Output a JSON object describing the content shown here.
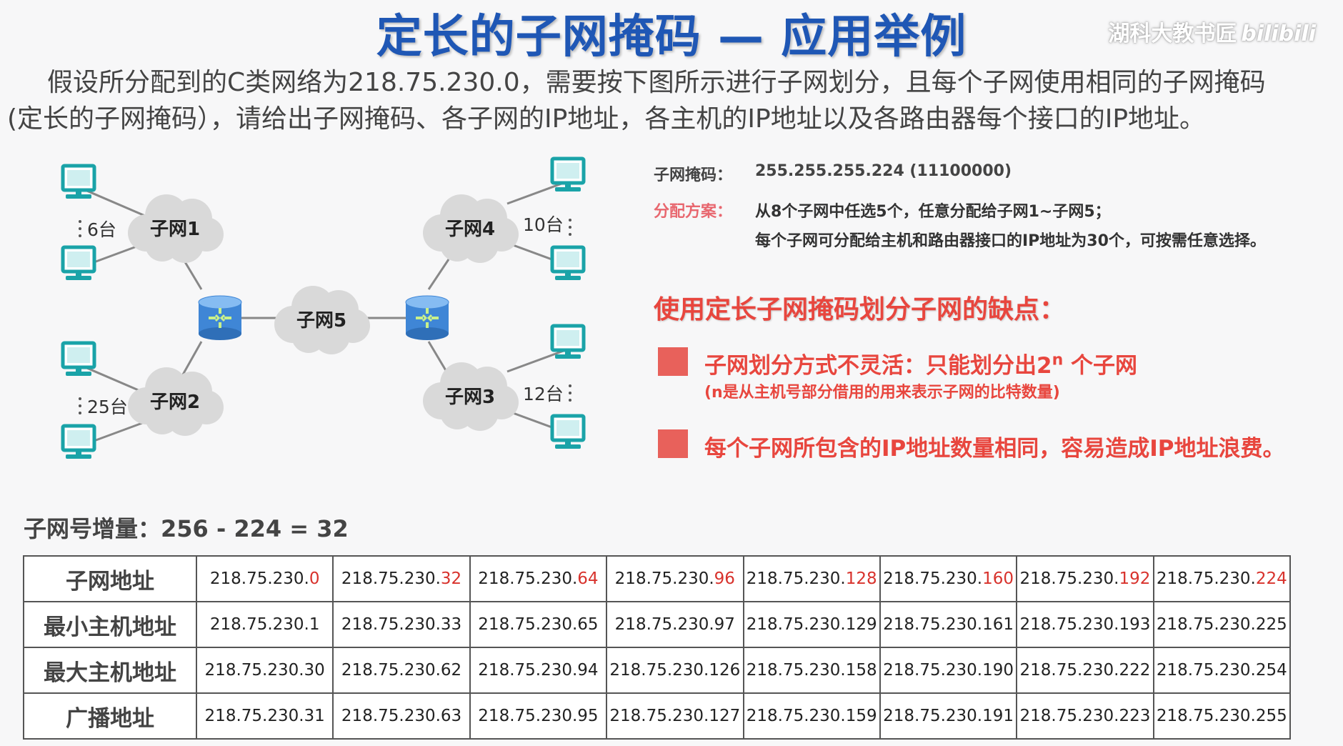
{
  "title": "定长的子网掩码 — 应用举例",
  "watermark": {
    "text": "湖科大教书匠",
    "logo": "bilibili"
  },
  "intro": {
    "line1": "假设所分配到的C类网络为218.75.230.0，需要按下图所示进行子网划分，且每个子网使用相同的子网掩码",
    "line2": "(定长的子网掩码），请给出子网掩码、各子网的IP地址，各主机的IP地址以及各路由器每个接口的IP地址。"
  },
  "diagram": {
    "subnets": [
      "子网1",
      "子网2",
      "子网3",
      "子网4",
      "子网5"
    ],
    "host_counts": {
      "subnet1": "6台",
      "subnet2": "25台",
      "subnet3": "12台",
      "subnet4": "10台"
    },
    "colors": {
      "cloud": "#d9d9d9",
      "router": "#3f86d6",
      "host": "#1aa3a8",
      "link": "#888888"
    }
  },
  "info": {
    "mask_label": "子网掩码：",
    "mask_value": "255.255.255.224 (11100000)",
    "plan_label": "分配方案：",
    "plan_line1": "从8个子网中任选5个，任意分配给子网1~子网5；",
    "plan_line2": "每个子网可分配给主机和路由器接口的IP地址为30个，可按需任意选择。"
  },
  "drawbacks": {
    "title": "使用定长子网掩码划分子网的缺点：",
    "item1_text": "子网划分方式不灵活：只能划分出2",
    "item1_sup": "n",
    "item1_tail": " 个子网",
    "item1_sub": "(n是从主机号部分借用的用来表示子网的比特数量)",
    "item2": "每个子网所包含的IP地址数量相同，容易造成IP地址浪费。",
    "accent": "#e8463e"
  },
  "increment": "子网号增量：256 - 224 = 32",
  "table": {
    "row_headers": [
      "子网地址",
      "最小主机地址",
      "最大主机地址",
      "广播地址"
    ],
    "subnet_prefix": "218.75.230.",
    "subnet_suffix": [
      "0",
      "32",
      "64",
      "96",
      "128",
      "160",
      "192",
      "224"
    ],
    "min_host": [
      "218.75.230.1",
      "218.75.230.33",
      "218.75.230.65",
      "218.75.230.97",
      "218.75.230.129",
      "218.75.230.161",
      "218.75.230.193",
      "218.75.230.225"
    ],
    "max_host": [
      "218.75.230.30",
      "218.75.230.62",
      "218.75.230.94",
      "218.75.230.126",
      "218.75.230.158",
      "218.75.230.190",
      "218.75.230.222",
      "218.75.230.254"
    ],
    "broadcast": [
      "218.75.230.31",
      "218.75.230.63",
      "218.75.230.95",
      "218.75.230.127",
      "218.75.230.159",
      "218.75.230.191",
      "218.75.230.223",
      "218.75.230.255"
    ]
  }
}
